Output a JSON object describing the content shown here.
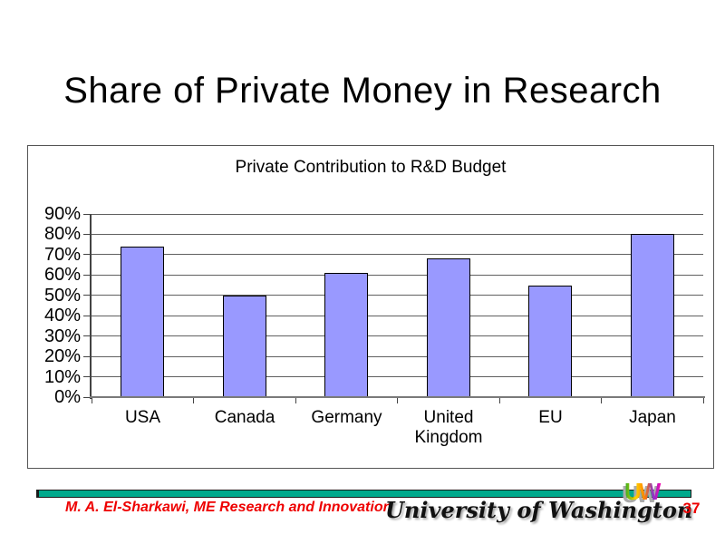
{
  "slide": {
    "title": "Share of Private Money in Research"
  },
  "chart_data": {
    "type": "bar",
    "title": "Private Contribution to R&D Budget",
    "categories": [
      "USA",
      "Canada",
      "Germany",
      "United Kingdom",
      "EU",
      "Japan"
    ],
    "values": [
      74,
      50,
      61,
      68,
      55,
      80
    ],
    "value_unit": "%",
    "xlabel": "",
    "ylabel": "",
    "ylim": [
      0,
      90
    ],
    "ytick_step": 10,
    "ytick_labels": [
      "0%",
      "10%",
      "20%",
      "30%",
      "40%",
      "50%",
      "60%",
      "70%",
      "80%",
      "90%"
    ],
    "grid": true,
    "legend": "none",
    "bar_color": "#9999FF",
    "bar_border_color": "#000000"
  },
  "footer": {
    "author": "M. A. El-Sharkawi, ME Research and Innovation",
    "brand": "University of Washington",
    "logo_text": "UW",
    "logo_colors": [
      "#22AA22",
      "#FFD400",
      "#FF7F00",
      "#8833CC",
      "#FF00AA"
    ],
    "logo_shadow_color": "#AAAAAA",
    "page_number": "37",
    "divider_color": "#00A98C",
    "text_color": "#EE0000"
  }
}
